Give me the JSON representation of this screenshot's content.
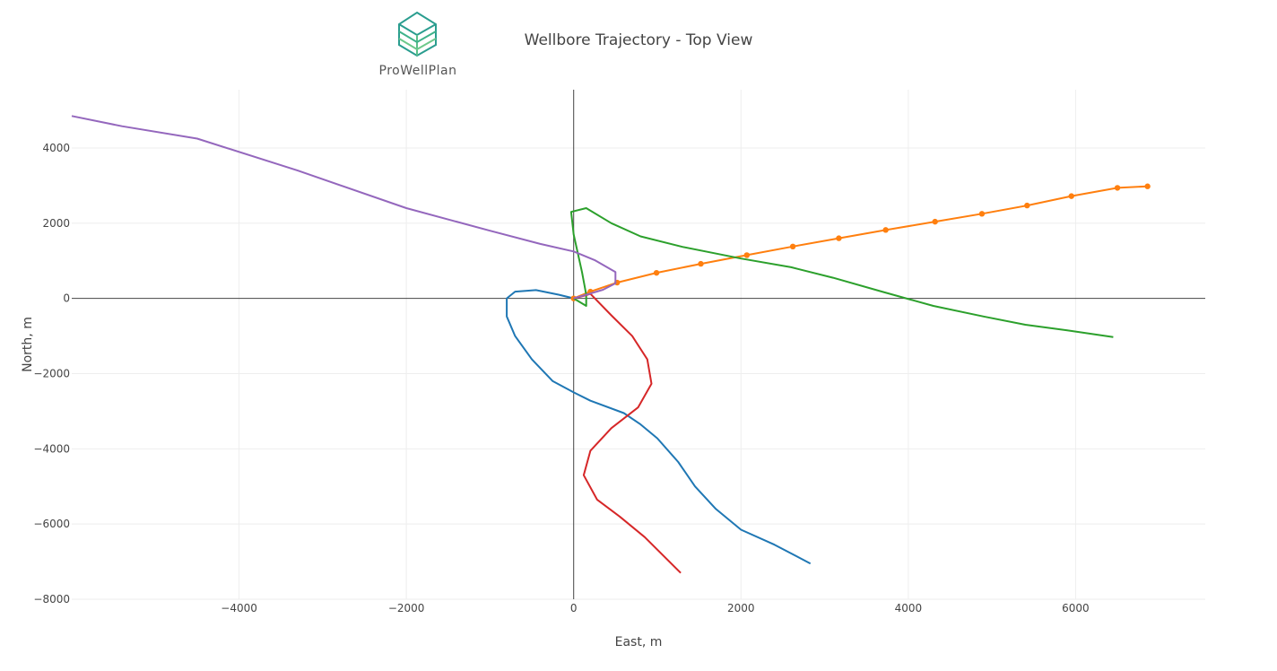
{
  "logo": {
    "text": "ProWellPlan",
    "icon": "prowellplan-cube-icon"
  },
  "chart_data": {
    "type": "line",
    "title": "Wellbore Trajectory - Top View",
    "xlabel": "East, m",
    "ylabel": "North, m",
    "xlim": [
      -6000,
      7550
    ],
    "ylim": [
      -8000,
      5550
    ],
    "xticks": [
      -4000,
      -2000,
      0,
      2000,
      4000,
      6000
    ],
    "yticks": [
      -8000,
      -6000,
      -4000,
      -2000,
      0,
      2000,
      4000
    ],
    "xtick_labels": [
      "−4000",
      "−2000",
      "0",
      "2000",
      "4000",
      "6000"
    ],
    "ytick_labels": [
      "−8000",
      "−6000",
      "−4000",
      "−2000",
      "0",
      "2000",
      "4000"
    ],
    "grid": true,
    "zero_lines": true,
    "legend": false,
    "series": [
      {
        "color": "#1f77b4",
        "markers": false,
        "x": [
          0,
          -180,
          -450,
          -700,
          -800,
          -800,
          -700,
          -500,
          -250,
          0,
          200,
          600,
          800,
          1000,
          1250,
          1450,
          1700,
          2000,
          2400,
          2830
        ],
        "y": [
          0,
          100,
          220,
          180,
          0,
          -480,
          -1000,
          -1620,
          -2200,
          -2500,
          -2720,
          -3050,
          -3350,
          -3720,
          -4350,
          -5000,
          -5600,
          -6150,
          -6550,
          -7050
        ]
      },
      {
        "color": "#ff7f0e",
        "markers": true,
        "x": [
          0,
          200,
          520,
          990,
          1520,
          2070,
          2620,
          3170,
          3730,
          4320,
          4880,
          5420,
          5950,
          6500,
          6860
        ],
        "y": [
          0,
          180,
          420,
          680,
          920,
          1150,
          1380,
          1600,
          1820,
          2040,
          2250,
          2470,
          2720,
          2940,
          2980
        ]
      },
      {
        "color": "#2ca02c",
        "markers": false,
        "x": [
          0,
          150,
          150,
          100,
          0,
          -30,
          150,
          450,
          800,
          1300,
          2000,
          2600,
          3100,
          3700,
          4300,
          4900,
          5400,
          5900,
          6450
        ],
        "y": [
          0,
          -200,
          100,
          700,
          1700,
          2300,
          2400,
          2000,
          1650,
          1370,
          1060,
          830,
          550,
          170,
          -200,
          -480,
          -700,
          -850,
          -1030
        ]
      },
      {
        "color": "#d62728",
        "markers": false,
        "x": [
          0,
          140,
          200,
          450,
          700,
          880,
          930,
          770,
          450,
          200,
          120,
          280,
          550,
          850,
          1280
        ],
        "y": [
          0,
          80,
          120,
          -450,
          -1000,
          -1620,
          -2270,
          -2900,
          -3450,
          -4050,
          -4700,
          -5350,
          -5800,
          -6350,
          -7300
        ]
      },
      {
        "color": "#9467bd",
        "markers": false,
        "x": [
          0,
          200,
          350,
          500,
          500,
          250,
          0,
          -400,
          -1000,
          -2000,
          -3300,
          -4500,
          -5400,
          -6000
        ],
        "y": [
          0,
          130,
          230,
          400,
          700,
          1020,
          1250,
          1450,
          1800,
          2400,
          3400,
          4250,
          4580,
          4850
        ]
      }
    ]
  }
}
